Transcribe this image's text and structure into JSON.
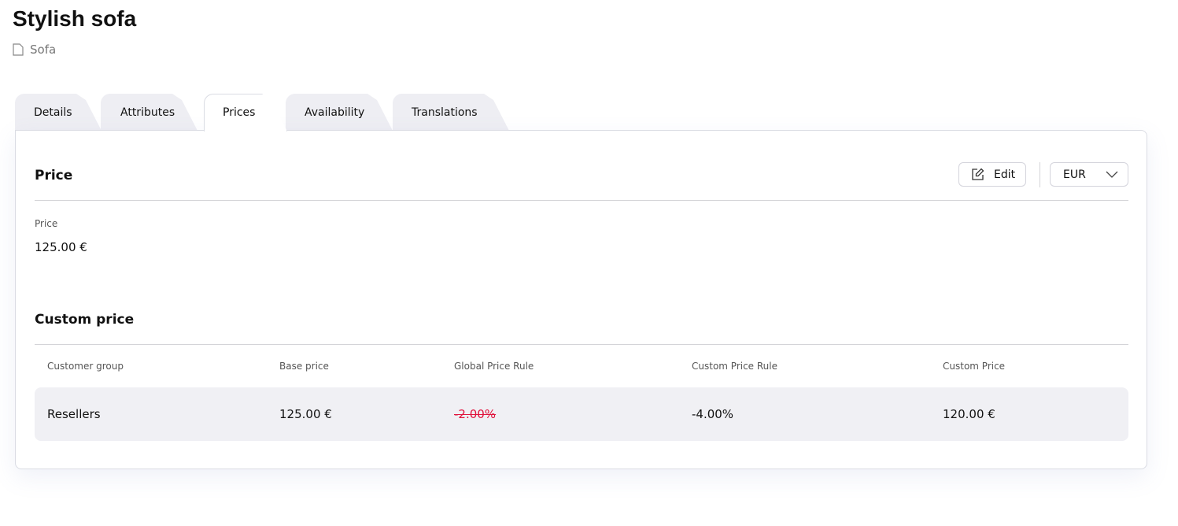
{
  "header": {
    "title": "Stylish sofa",
    "category": "Sofa",
    "category_icon": "document-icon"
  },
  "tabs": [
    {
      "label": "Details"
    },
    {
      "label": "Attributes"
    },
    {
      "label": "Prices",
      "active": true
    },
    {
      "label": "Availability"
    },
    {
      "label": "Translations"
    }
  ],
  "price": {
    "heading": "Price",
    "edit_label": "Edit",
    "currency": "EUR",
    "field_label": "Price",
    "field_value": "125.00 €"
  },
  "custom_price": {
    "heading": "Custom price",
    "columns": [
      "Customer group",
      "Base price",
      "Global Price Rule",
      "Custom Price Rule",
      "Custom Price"
    ],
    "rows": [
      {
        "group": "Resellers",
        "base": "125.00 €",
        "global_rule": "-2.00%",
        "custom_rule": "-4.00%",
        "custom_price": "120.00 €"
      }
    ]
  },
  "colors": {
    "strike": "#e0103a",
    "tab_bg": "#eeeef3",
    "row_bg": "#f0f0f4"
  }
}
